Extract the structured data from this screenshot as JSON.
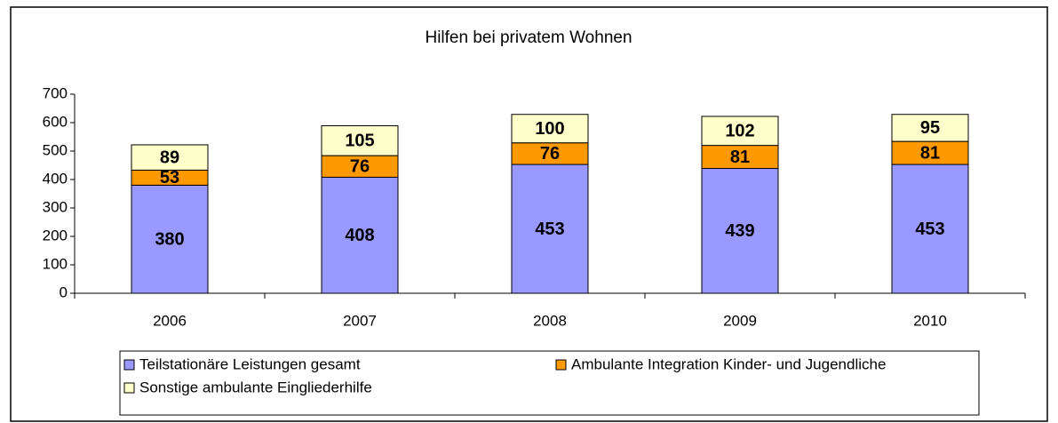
{
  "chart_data": {
    "type": "stacked_bar",
    "title": "Hilfen bei privatem Wohnen",
    "categories": [
      "2006",
      "2007",
      "2008",
      "2009",
      "2010"
    ],
    "series": [
      {
        "name": "Teilstationäre Leistungen gesamt",
        "color": "#9999ff",
        "values": [
          380,
          408,
          453,
          439,
          453
        ]
      },
      {
        "name": "Ambulante Integration Kinder- und Jugendliche",
        "color": "#ff9900",
        "values": [
          53,
          76,
          76,
          81,
          81
        ]
      },
      {
        "name": "Sonstige ambulante Eingliederhilfe",
        "color": "#ffffcc",
        "values": [
          89,
          105,
          100,
          102,
          95
        ]
      }
    ],
    "ylim": [
      0,
      700
    ],
    "yticks": [
      0,
      100,
      200,
      300,
      400,
      500,
      600,
      700
    ],
    "grid": false,
    "legend": "bottom"
  }
}
